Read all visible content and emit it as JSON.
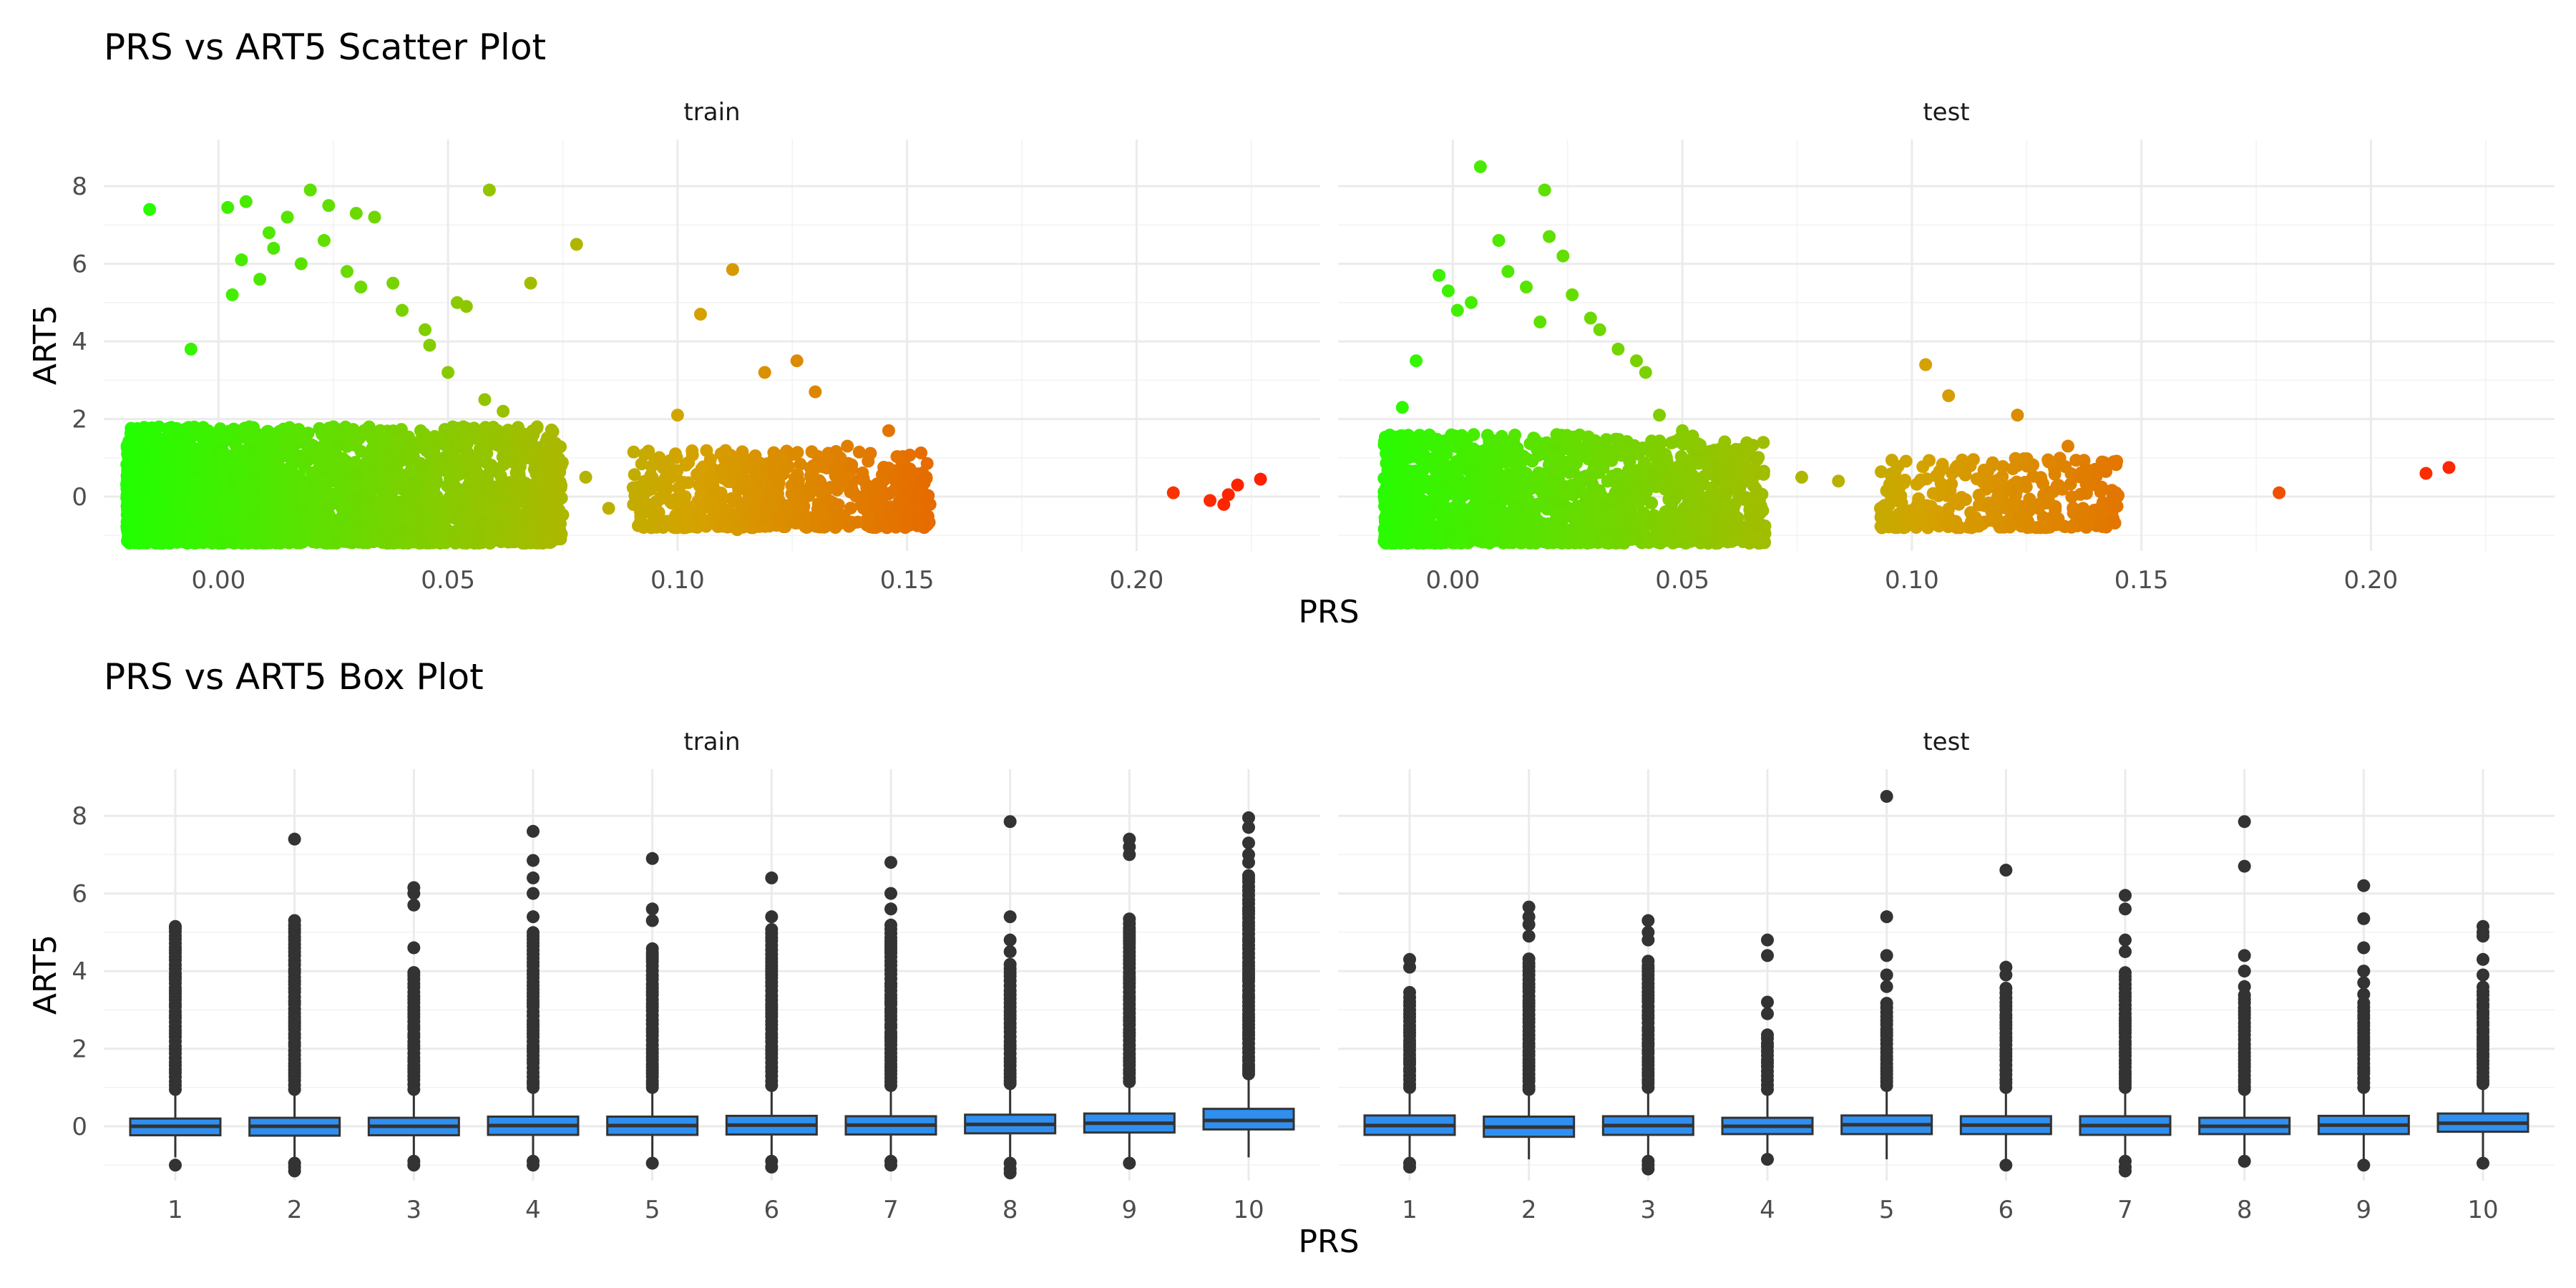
{
  "chart_data": [
    {
      "type": "scatter",
      "title": "PRS vs ART5 Scatter Plot",
      "xlabel": "PRS",
      "ylabel": "ART5",
      "facets": [
        "train",
        "test"
      ],
      "xlim": [
        -0.025,
        0.24
      ],
      "ylim": [
        -1.4,
        9.2
      ],
      "x_ticks": [
        0.0,
        0.05,
        0.1,
        0.15,
        0.2
      ],
      "x_tick_labels": [
        "0.00",
        "0.05",
        "0.10",
        "0.15",
        "0.20"
      ],
      "y_ticks": [
        0,
        2,
        4,
        6,
        8
      ],
      "y_tick_labels": [
        "0",
        "2",
        "4",
        "6",
        "8"
      ],
      "color_scale": {
        "low": "#22ff00",
        "mid": "#d4a300",
        "high": "#ff2000",
        "by": "PRS"
      },
      "grid": true,
      "legend": "none",
      "panels": {
        "train": {
          "clusters": [
            {
              "x_range": [
                -0.02,
                0.075
              ],
              "y_core": [
                -1.2,
                1.8
              ],
              "n": 2600
            },
            {
              "x_range": [
                0.09,
                0.155
              ],
              "y_core": [
                -0.8,
                1.2
              ],
              "n": 650
            }
          ],
          "points": [
            [
              -0.015,
              7.4
            ],
            [
              -0.006,
              3.8
            ],
            [
              0.002,
              7.45
            ],
            [
              0.006,
              7.6
            ],
            [
              0.011,
              6.8
            ],
            [
              0.015,
              7.2
            ],
            [
              0.02,
              7.9
            ],
            [
              0.024,
              7.5
            ],
            [
              0.03,
              7.3
            ],
            [
              0.034,
              7.2
            ],
            [
              0.005,
              6.1
            ],
            [
              0.012,
              6.4
            ],
            [
              0.018,
              6.0
            ],
            [
              0.028,
              5.8
            ],
            [
              0.031,
              5.4
            ],
            [
              0.038,
              5.5
            ],
            [
              0.04,
              4.8
            ],
            [
              0.045,
              4.3
            ],
            [
              0.052,
              5.0
            ],
            [
              0.054,
              4.9
            ],
            [
              0.059,
              7.9
            ],
            [
              0.068,
              5.5
            ],
            [
              0.078,
              6.5
            ],
            [
              0.046,
              3.9
            ],
            [
              0.05,
              3.2
            ],
            [
              0.058,
              2.5
            ],
            [
              0.062,
              2.2
            ],
            [
              0.066,
              1.4
            ],
            [
              0.072,
              1.0
            ],
            [
              0.074,
              0.6
            ],
            [
              0.08,
              0.5
            ],
            [
              0.085,
              -0.3
            ],
            [
              0.1,
              2.1
            ],
            [
              0.105,
              4.7
            ],
            [
              0.112,
              5.85
            ],
            [
              0.119,
              3.2
            ],
            [
              0.126,
              3.5
            ],
            [
              0.13,
              2.7
            ],
            [
              0.137,
              1.3
            ],
            [
              0.146,
              1.7
            ],
            [
              0.15,
              0.1
            ],
            [
              0.155,
              -0.2
            ],
            [
              0.113,
              -0.85
            ],
            [
              0.009,
              5.6
            ],
            [
              0.003,
              5.2
            ],
            [
              0.023,
              6.6
            ]
          ],
          "outliers": [
            [
              0.208,
              0.1
            ],
            [
              0.216,
              -0.1
            ],
            [
              0.219,
              -0.2
            ],
            [
              0.22,
              0.05
            ],
            [
              0.222,
              0.3
            ],
            [
              0.227,
              0.45
            ]
          ]
        },
        "test": {
          "clusters": [
            {
              "x_range": [
                -0.015,
                0.068
              ],
              "y_core": [
                -1.2,
                1.6
              ],
              "n": 1500
            },
            {
              "x_range": [
                0.093,
                0.145
              ],
              "y_core": [
                -0.8,
                1.0
              ],
              "n": 320
            }
          ],
          "points": [
            [
              0.006,
              8.5
            ],
            [
              0.01,
              6.6
            ],
            [
              0.02,
              7.9
            ],
            [
              0.021,
              6.7
            ],
            [
              0.024,
              6.2
            ],
            [
              -0.003,
              5.7
            ],
            [
              -0.001,
              5.3
            ],
            [
              0.004,
              5.0
            ],
            [
              0.012,
              5.8
            ],
            [
              0.016,
              5.4
            ],
            [
              0.026,
              5.2
            ],
            [
              0.03,
              4.6
            ],
            [
              0.032,
              4.3
            ],
            [
              0.036,
              3.8
            ],
            [
              0.04,
              3.5
            ],
            [
              0.042,
              3.2
            ],
            [
              0.045,
              2.1
            ],
            [
              0.05,
              1.7
            ],
            [
              0.055,
              0.9
            ],
            [
              0.06,
              0.4
            ],
            [
              0.066,
              0.2
            ],
            [
              0.076,
              0.5
            ],
            [
              0.084,
              0.4
            ],
            [
              -0.011,
              2.3
            ],
            [
              -0.008,
              3.5
            ],
            [
              0.103,
              3.4
            ],
            [
              0.108,
              2.6
            ],
            [
              0.123,
              2.1
            ],
            [
              0.13,
              0.9
            ],
            [
              0.134,
              1.3
            ],
            [
              0.138,
              0.7
            ],
            [
              0.144,
              0.9
            ],
            [
              0.113,
              -0.8
            ],
            [
              0.108,
              -0.6
            ],
            [
              0.001,
              4.8
            ],
            [
              0.019,
              4.5
            ]
          ],
          "outliers": [
            [
              0.18,
              0.1
            ],
            [
              0.212,
              0.6
            ],
            [
              0.217,
              0.75
            ]
          ]
        }
      }
    },
    {
      "type": "box",
      "title": "PRS vs ART5 Box Plot",
      "xlabel": "PRS",
      "ylabel": "ART5",
      "facets": [
        "train",
        "test"
      ],
      "categories": [
        "1",
        "2",
        "3",
        "4",
        "5",
        "6",
        "7",
        "8",
        "9",
        "10"
      ],
      "ylim": [
        -1.4,
        9.2
      ],
      "y_ticks": [
        0,
        2,
        4,
        6,
        8
      ],
      "y_tick_labels": [
        "0",
        "2",
        "4",
        "6",
        "8"
      ],
      "box_color": "#2f8ff0",
      "grid": true,
      "panels": {
        "train": [
          {
            "q1": -0.23,
            "median": 0.0,
            "q3": 0.2,
            "lo": -0.8,
            "hi": 0.85,
            "out_max": 5.1,
            "top": [
              5.15
            ],
            "low": [
              -1.0
            ]
          },
          {
            "q1": -0.24,
            "median": 0.0,
            "q3": 0.22,
            "lo": -0.85,
            "hi": 0.85,
            "out_max": 5.4,
            "top": [
              7.4
            ],
            "low": [
              -0.95,
              -1.05,
              -1.15
            ]
          },
          {
            "q1": -0.23,
            "median": 0.0,
            "q3": 0.22,
            "lo": -0.85,
            "hi": 0.85,
            "out_max": 4.0,
            "top": [
              4.6,
              5.7,
              6.0,
              6.15
            ],
            "low": [
              -0.9,
              -1.0
            ]
          },
          {
            "q1": -0.22,
            "median": 0.02,
            "q3": 0.25,
            "lo": -0.85,
            "hi": 0.9,
            "out_max": 5.0,
            "top": [
              5.4,
              6.0,
              6.4,
              6.85,
              7.6
            ],
            "low": [
              -0.9,
              -1.0
            ]
          },
          {
            "q1": -0.22,
            "median": 0.02,
            "q3": 0.25,
            "lo": -0.85,
            "hi": 0.9,
            "out_max": 4.6,
            "top": [
              5.3,
              5.6,
              6.9
            ],
            "low": [
              -0.95
            ]
          },
          {
            "q1": -0.21,
            "median": 0.03,
            "q3": 0.27,
            "lo": -0.85,
            "hi": 0.95,
            "out_max": 5.1,
            "top": [
              5.4,
              6.4
            ],
            "low": [
              -0.9,
              -1.05
            ]
          },
          {
            "q1": -0.21,
            "median": 0.03,
            "q3": 0.26,
            "lo": -0.85,
            "hi": 0.95,
            "out_max": 5.3,
            "top": [
              5.6,
              6.0,
              6.8
            ],
            "low": [
              -0.9,
              -1.0
            ]
          },
          {
            "q1": -0.18,
            "median": 0.05,
            "q3": 0.3,
            "lo": -0.85,
            "hi": 1.0,
            "out_max": 4.2,
            "top": [
              4.5,
              4.8,
              5.4,
              7.85
            ],
            "low": [
              -0.95,
              -1.1,
              -1.2
            ]
          },
          {
            "q1": -0.16,
            "median": 0.08,
            "q3": 0.33,
            "lo": -0.85,
            "hi": 1.05,
            "out_max": 5.4,
            "top": [
              7.0,
              7.2,
              7.4
            ],
            "low": [
              -0.95
            ]
          },
          {
            "q1": -0.08,
            "median": 0.15,
            "q3": 0.45,
            "lo": -0.8,
            "hi": 1.25,
            "out_max": 6.5,
            "top": [
              6.8,
              7.0,
              7.3,
              7.7,
              7.95
            ],
            "low": []
          }
        ],
        "test": [
          {
            "q1": -0.22,
            "median": 0.02,
            "q3": 0.28,
            "lo": -0.8,
            "hi": 0.9,
            "out_max": 3.5,
            "top": [
              4.1,
              4.3
            ],
            "low": [
              -0.95,
              -1.05
            ]
          },
          {
            "q1": -0.27,
            "median": -0.02,
            "q3": 0.25,
            "lo": -0.85,
            "hi": 0.85,
            "out_max": 4.4,
            "top": [
              4.9,
              5.2,
              5.4,
              5.65
            ],
            "low": []
          },
          {
            "q1": -0.22,
            "median": 0.02,
            "q3": 0.26,
            "lo": -0.85,
            "hi": 0.9,
            "out_max": 4.3,
            "top": [
              4.8,
              5.0,
              5.3
            ],
            "low": [
              -0.9,
              -1.0,
              -1.1
            ]
          },
          {
            "q1": -0.2,
            "median": 0.0,
            "q3": 0.22,
            "lo": -0.75,
            "hi": 0.85,
            "out_max": 2.4,
            "top": [
              2.9,
              3.2,
              4.4,
              4.8
            ],
            "low": [
              -0.85
            ]
          },
          {
            "q1": -0.2,
            "median": 0.04,
            "q3": 0.28,
            "lo": -0.85,
            "hi": 0.95,
            "out_max": 3.2,
            "top": [
              3.6,
              3.9,
              4.4,
              5.4,
              8.5
            ],
            "low": []
          },
          {
            "q1": -0.2,
            "median": 0.03,
            "q3": 0.26,
            "lo": -0.85,
            "hi": 0.9,
            "out_max": 3.6,
            "top": [
              3.9,
              4.1,
              6.6
            ],
            "low": [
              -1.0
            ]
          },
          {
            "q1": -0.22,
            "median": 0.02,
            "q3": 0.26,
            "lo": -0.85,
            "hi": 0.9,
            "out_max": 4.0,
            "top": [
              4.5,
              4.8,
              5.6,
              5.95
            ],
            "low": [
              -0.9,
              -1.05,
              -1.15
            ]
          },
          {
            "q1": -0.2,
            "median": 0.0,
            "q3": 0.22,
            "lo": -0.75,
            "hi": 0.85,
            "out_max": 3.4,
            "top": [
              3.6,
              4.0,
              4.4,
              6.7,
              7.85
            ],
            "low": [
              -0.9
            ]
          },
          {
            "q1": -0.2,
            "median": 0.03,
            "q3": 0.27,
            "lo": -0.85,
            "hi": 0.9,
            "out_max": 3.2,
            "top": [
              3.4,
              3.7,
              4.0,
              4.6,
              5.35,
              6.2
            ],
            "low": [
              -1.0
            ]
          },
          {
            "q1": -0.14,
            "median": 0.08,
            "q3": 0.33,
            "lo": -0.8,
            "hi": 1.0,
            "out_max": 3.6,
            "top": [
              3.9,
              4.3,
              4.9,
              5.0,
              5.15
            ],
            "low": [
              -0.95
            ]
          }
        ]
      }
    }
  ]
}
